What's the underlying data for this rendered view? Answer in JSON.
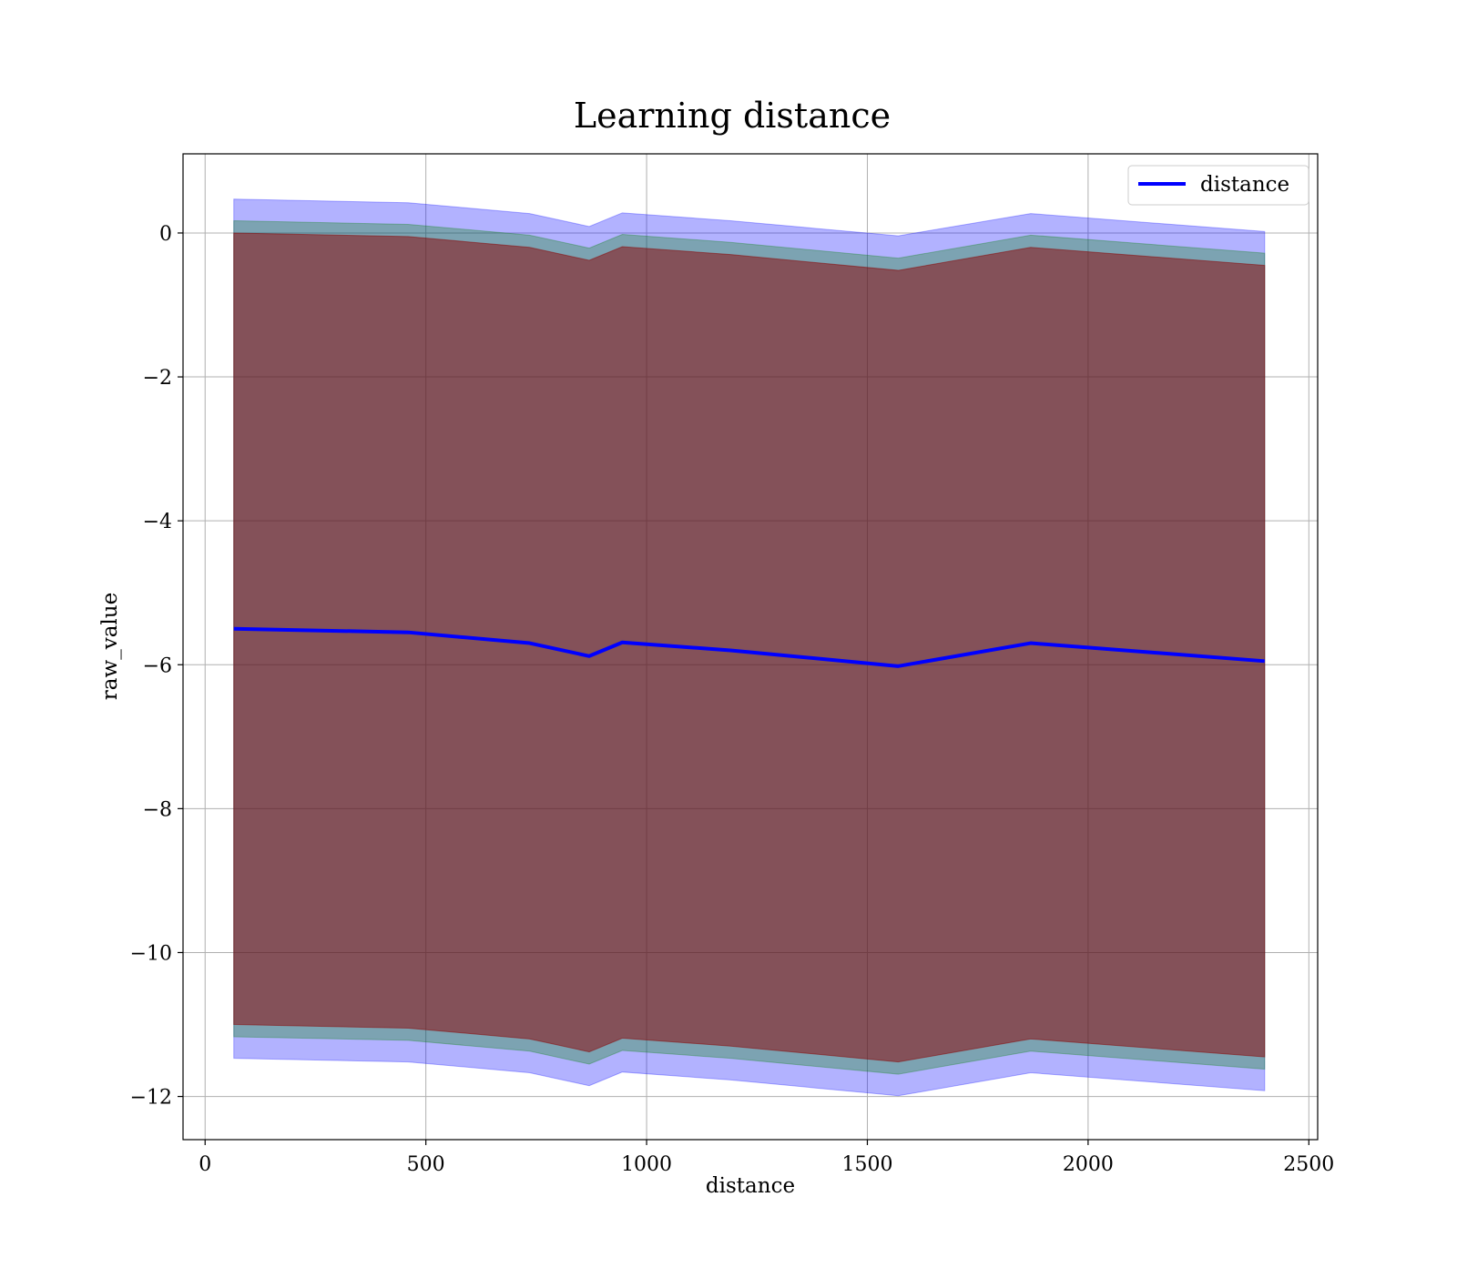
{
  "chart_data": {
    "type": "line",
    "title": "Learning distance",
    "xlabel": "distance",
    "ylabel": "raw_value",
    "xlim": [
      -50,
      2520
    ],
    "ylim": [
      -12.6,
      1.1
    ],
    "xticks": [
      0,
      500,
      1000,
      1500,
      2000,
      2500
    ],
    "yticks": [
      0,
      -2,
      -4,
      -6,
      -8,
      -10,
      -12
    ],
    "grid": true,
    "legend": {
      "position": "top-right",
      "entries": [
        "distance"
      ]
    },
    "x": [
      65,
      460,
      735,
      870,
      945,
      1190,
      1570,
      1870,
      2400
    ],
    "series": [
      {
        "name": "distance",
        "color": "#0000ff",
        "values": [
          -5.5,
          -5.55,
          -5.7,
          -5.88,
          -5.69,
          -5.8,
          -6.02,
          -5.7,
          -5.95
        ]
      }
    ],
    "bands": [
      {
        "color": "#0000ff",
        "opacity": 0.3,
        "upper": [
          0.47,
          0.42,
          0.27,
          0.09,
          0.28,
          0.17,
          -0.04,
          0.27,
          0.02
        ],
        "lower": [
          -11.47,
          -11.52,
          -11.67,
          -11.85,
          -11.66,
          -11.77,
          -11.99,
          -11.67,
          -11.92
        ]
      },
      {
        "color": "#008000",
        "opacity": 0.3,
        "upper": [
          0.17,
          0.12,
          -0.03,
          -0.21,
          -0.02,
          -0.13,
          -0.35,
          -0.03,
          -0.28
        ],
        "lower": [
          -11.17,
          -11.22,
          -11.37,
          -11.55,
          -11.36,
          -11.47,
          -11.69,
          -11.37,
          -11.62
        ]
      },
      {
        "color": "#8b0000",
        "opacity": 0.5,
        "upper": [
          0.0,
          -0.05,
          -0.2,
          -0.38,
          -0.19,
          -0.3,
          -0.52,
          -0.2,
          -0.45
        ],
        "lower": [
          -11.0,
          -11.05,
          -11.2,
          -11.38,
          -11.19,
          -11.3,
          -11.52,
          -11.2,
          -11.45
        ]
      }
    ]
  }
}
